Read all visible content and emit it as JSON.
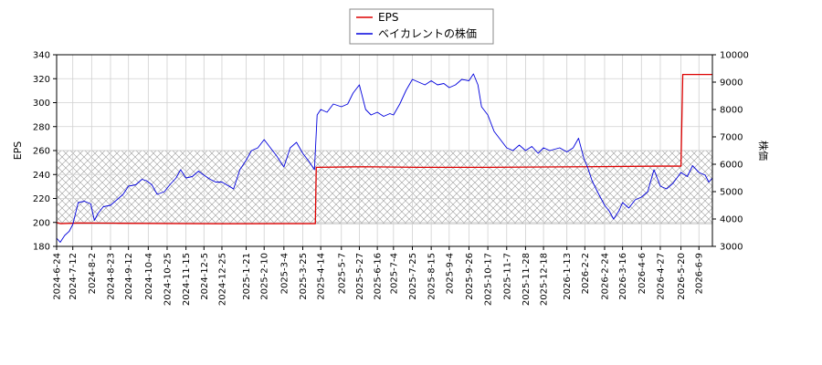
{
  "chart_data": {
    "type": "line",
    "legend": {
      "placement": "top-center",
      "entries": [
        "EPS",
        "ベイカレントの株価"
      ]
    },
    "grid": true,
    "x_ticks": [
      "2024-6-24",
      "2024-7-12",
      "2024-8-2",
      "2024-8-23",
      "2024-9-12",
      "2024-10-4",
      "2024-10-25",
      "2024-11-15",
      "2024-12-5",
      "2024-12-25",
      "2025-1-21",
      "2025-2-10",
      "2025-3-4",
      "2025-3-25",
      "2025-4-14",
      "2025-5-7",
      "2025-5-27",
      "2025-6-16",
      "2025-7-4",
      "2025-7-25",
      "2025-8-15",
      "2025-9-4",
      "2025-9-26",
      "2025-10-17",
      "2025-11-7",
      "2025-11-28",
      "2025-12-18",
      "2026-1-13",
      "2026-2-2",
      "2026-2-24",
      "2026-3-16",
      "2026-4-6",
      "2026-4-27",
      "2026-5-20",
      "2026-6-9"
    ],
    "x_range_end": "2026-6-24",
    "y_left": {
      "label": "EPS",
      "range": [
        180,
        340
      ],
      "ticks": [
        180,
        200,
        220,
        240,
        260,
        280,
        300,
        320,
        340
      ]
    },
    "y_right": {
      "label": "株価",
      "range": [
        3000,
        10000
      ],
      "ticks": [
        3000,
        4000,
        5000,
        6000,
        7000,
        8000,
        9000,
        10000
      ]
    },
    "band": {
      "axis": "left",
      "from": 199,
      "to": 260,
      "pattern": "crosshatch"
    },
    "series": [
      {
        "name": "EPS",
        "axis": "left",
        "color": "#dd0000",
        "points": [
          [
            "2024-6-24",
            200
          ],
          [
            "2024-6-28",
            199
          ],
          [
            "2024-7-20",
            199.5
          ],
          [
            "2024-9-1",
            199.3
          ],
          [
            "2024-10-25",
            199.1
          ],
          [
            "2024-12-25",
            198.9
          ],
          [
            "2025-3-4",
            199.0
          ],
          [
            "2025-4-8",
            199.0
          ],
          [
            "2025-4-9",
            246
          ],
          [
            "2025-6-1",
            246.5
          ],
          [
            "2025-8-1",
            246
          ],
          [
            "2025-10-17",
            246
          ],
          [
            "2025-12-18",
            246.3
          ],
          [
            "2026-2-2",
            246.5
          ],
          [
            "2026-4-27",
            247
          ],
          [
            "2026-5-20",
            247
          ],
          [
            "2026-5-22",
            323.5
          ],
          [
            "2026-6-24",
            323.5
          ]
        ]
      },
      {
        "name": "ベイカレントの株価",
        "axis": "right",
        "color": "#0000dd",
        "points": [
          [
            "2024-6-24",
            3300
          ],
          [
            "2024-6-28",
            3150
          ],
          [
            "2024-7-3",
            3400
          ],
          [
            "2024-7-8",
            3550
          ],
          [
            "2024-7-12",
            3800
          ],
          [
            "2024-7-18",
            4600
          ],
          [
            "2024-7-25",
            4650
          ],
          [
            "2024-8-1",
            4550
          ],
          [
            "2024-8-5",
            3950
          ],
          [
            "2024-8-9",
            4200
          ],
          [
            "2024-8-15",
            4450
          ],
          [
            "2024-8-23",
            4500
          ],
          [
            "2024-8-30",
            4700
          ],
          [
            "2024-9-6",
            4900
          ],
          [
            "2024-9-12",
            5200
          ],
          [
            "2024-9-20",
            5250
          ],
          [
            "2024-9-27",
            5450
          ],
          [
            "2024-10-2",
            5400
          ],
          [
            "2024-10-8",
            5250
          ],
          [
            "2024-10-14",
            4900
          ],
          [
            "2024-10-22",
            5000
          ],
          [
            "2024-10-28",
            5250
          ],
          [
            "2024-11-4",
            5500
          ],
          [
            "2024-11-9",
            5800
          ],
          [
            "2024-11-15",
            5500
          ],
          [
            "2024-11-22",
            5550
          ],
          [
            "2024-11-29",
            5750
          ],
          [
            "2024-12-5",
            5600
          ],
          [
            "2024-12-12",
            5450
          ],
          [
            "2024-12-18",
            5350
          ],
          [
            "2024-12-25",
            5350
          ],
          [
            "2025-1-7",
            5100
          ],
          [
            "2025-1-14",
            5800
          ],
          [
            "2025-1-21",
            6150
          ],
          [
            "2025-1-27",
            6500
          ],
          [
            "2025-2-3",
            6600
          ],
          [
            "2025-2-10",
            6900
          ],
          [
            "2025-2-17",
            6600
          ],
          [
            "2025-2-24",
            6300
          ],
          [
            "2025-3-4",
            5900
          ],
          [
            "2025-3-11",
            6600
          ],
          [
            "2025-3-18",
            6800
          ],
          [
            "2025-3-25",
            6400
          ],
          [
            "2025-4-1",
            6100
          ],
          [
            "2025-4-7",
            5800
          ],
          [
            "2025-4-10",
            7800
          ],
          [
            "2025-4-14",
            8000
          ],
          [
            "2025-4-21",
            7900
          ],
          [
            "2025-4-28",
            8200
          ],
          [
            "2025-5-7",
            8100
          ],
          [
            "2025-5-14",
            8200
          ],
          [
            "2025-5-20",
            8600
          ],
          [
            "2025-5-27",
            8900
          ],
          [
            "2025-6-3",
            8000
          ],
          [
            "2025-6-9",
            7800
          ],
          [
            "2025-6-16",
            7900
          ],
          [
            "2025-6-23",
            7750
          ],
          [
            "2025-6-30",
            7850
          ],
          [
            "2025-7-4",
            7800
          ],
          [
            "2025-7-11",
            8200
          ],
          [
            "2025-7-18",
            8700
          ],
          [
            "2025-7-25",
            9100
          ],
          [
            "2025-8-1",
            9000
          ],
          [
            "2025-8-8",
            8900
          ],
          [
            "2025-8-15",
            9050
          ],
          [
            "2025-8-22",
            8900
          ],
          [
            "2025-8-29",
            8950
          ],
          [
            "2025-9-4",
            8800
          ],
          [
            "2025-9-11",
            8900
          ],
          [
            "2025-9-18",
            9100
          ],
          [
            "2025-9-26",
            9050
          ],
          [
            "2025-10-1",
            9300
          ],
          [
            "2025-10-6",
            8900
          ],
          [
            "2025-10-10",
            8100
          ],
          [
            "2025-10-17",
            7800
          ],
          [
            "2025-10-24",
            7200
          ],
          [
            "2025-10-31",
            6900
          ],
          [
            "2025-11-7",
            6600
          ],
          [
            "2025-11-14",
            6500
          ],
          [
            "2025-11-21",
            6700
          ],
          [
            "2025-11-28",
            6500
          ],
          [
            "2025-12-5",
            6650
          ],
          [
            "2025-12-12",
            6400
          ],
          [
            "2025-12-18",
            6600
          ],
          [
            "2025-12-25",
            6500
          ],
          [
            "2026-1-5",
            6600
          ],
          [
            "2026-1-13",
            6450
          ],
          [
            "2026-1-20",
            6600
          ],
          [
            "2026-1-26",
            6950
          ],
          [
            "2026-2-1",
            6200
          ],
          [
            "2026-2-5",
            5900
          ],
          [
            "2026-2-10",
            5400
          ],
          [
            "2026-2-16",
            5000
          ],
          [
            "2026-2-24",
            4500
          ],
          [
            "2026-3-1",
            4300
          ],
          [
            "2026-3-6",
            4000
          ],
          [
            "2026-3-12",
            4300
          ],
          [
            "2026-3-16",
            4600
          ],
          [
            "2026-3-23",
            4400
          ],
          [
            "2026-3-30",
            4700
          ],
          [
            "2026-4-6",
            4800
          ],
          [
            "2026-4-13",
            5000
          ],
          [
            "2026-4-20",
            5800
          ],
          [
            "2026-4-27",
            5200
          ],
          [
            "2026-5-4",
            5100
          ],
          [
            "2026-5-11",
            5300
          ],
          [
            "2026-5-20",
            5700
          ],
          [
            "2026-5-27",
            5550
          ],
          [
            "2026-6-2",
            5950
          ],
          [
            "2026-6-9",
            5700
          ],
          [
            "2026-6-16",
            5600
          ],
          [
            "2026-6-20",
            5350
          ],
          [
            "2026-6-24",
            5500
          ]
        ]
      }
    ]
  }
}
